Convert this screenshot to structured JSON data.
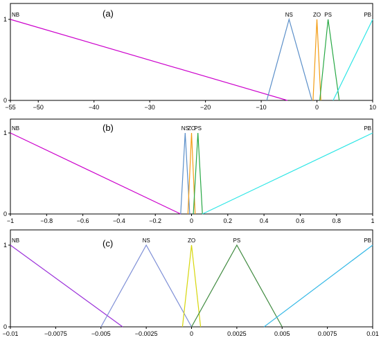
{
  "chart_data": [
    {
      "type": "line",
      "panel_label": "(a)",
      "xlim": [
        -55,
        10
      ],
      "ylim": [
        0,
        1
      ],
      "xticks": [
        {
          "v": -55,
          "label": "−55"
        },
        {
          "v": -50,
          "label": "−50"
        },
        {
          "v": -40,
          "label": "−40"
        },
        {
          "v": -30,
          "label": "−30"
        },
        {
          "v": -20,
          "label": "−20"
        },
        {
          "v": -10,
          "label": "−10"
        },
        {
          "v": 0,
          "label": "0"
        },
        {
          "v": 10,
          "label": "10"
        }
      ],
      "yticks": [
        {
          "v": 0,
          "label": "0"
        },
        {
          "v": 1,
          "label": "1"
        }
      ],
      "series": [
        {
          "name": "NB",
          "color": "#cc00cc",
          "x": [
            -55,
            -5.3
          ],
          "y": [
            1,
            0
          ]
        },
        {
          "name": "NS",
          "color": "#5b8fc9",
          "x": [
            -9,
            -5,
            -0.9
          ],
          "y": [
            0,
            1,
            0
          ]
        },
        {
          "name": "ZO",
          "color": "#f39c12",
          "x": [
            -0.7,
            0,
            0.7
          ],
          "y": [
            0,
            1,
            0
          ]
        },
        {
          "name": "PS",
          "color": "#27a844",
          "x": [
            0.5,
            2,
            4
          ],
          "y": [
            0,
            1,
            0
          ]
        },
        {
          "name": "PB",
          "color": "#2ee6e6",
          "x": [
            2.9,
            10
          ],
          "y": [
            0,
            1
          ]
        }
      ]
    },
    {
      "type": "line",
      "panel_label": "(b)",
      "xlim": [
        -1,
        1
      ],
      "ylim": [
        0,
        1
      ],
      "xticks": [
        {
          "v": -1,
          "label": "−1"
        },
        {
          "v": -0.8,
          "label": "−0.8"
        },
        {
          "v": -0.6,
          "label": "−0.6"
        },
        {
          "v": -0.4,
          "label": "−0.4"
        },
        {
          "v": -0.2,
          "label": "−0.2"
        },
        {
          "v": 0,
          "label": "0"
        },
        {
          "v": 0.2,
          "label": "0.2"
        },
        {
          "v": 0.4,
          "label": "0.4"
        },
        {
          "v": 0.6,
          "label": "0.6"
        },
        {
          "v": 0.8,
          "label": "0.8"
        },
        {
          "v": 1,
          "label": "1"
        }
      ],
      "yticks": [
        {
          "v": 0,
          "label": "0"
        },
        {
          "v": 1,
          "label": "1"
        }
      ],
      "series": [
        {
          "name": "NB",
          "color": "#cc00cc",
          "x": [
            -1,
            -0.06
          ],
          "y": [
            1,
            0
          ]
        },
        {
          "name": "NS",
          "color": "#5b8fc9",
          "x": [
            -0.06,
            -0.035,
            -0.01
          ],
          "y": [
            0,
            1,
            0
          ]
        },
        {
          "name": "ZO",
          "color": "#f39c12",
          "x": [
            -0.02,
            0,
            0.02
          ],
          "y": [
            0,
            1,
            0
          ]
        },
        {
          "name": "PS",
          "color": "#27a844",
          "x": [
            0.01,
            0.035,
            0.06
          ],
          "y": [
            0,
            1,
            0
          ]
        },
        {
          "name": "PB",
          "color": "#2ee6e6",
          "x": [
            0.06,
            1
          ],
          "y": [
            0,
            1
          ]
        }
      ]
    },
    {
      "type": "line",
      "panel_label": "(c)",
      "xlim": [
        -0.01,
        0.01
      ],
      "ylim": [
        0,
        1
      ],
      "xticks": [
        {
          "v": -0.01,
          "label": "−0.01"
        },
        {
          "v": -0.0075,
          "label": "−0.0075"
        },
        {
          "v": -0.005,
          "label": "−0.005"
        },
        {
          "v": -0.0025,
          "label": "−0.0025"
        },
        {
          "v": 0,
          "label": "0"
        },
        {
          "v": 0.0025,
          "label": "0.0025"
        },
        {
          "v": 0.005,
          "label": "0.005"
        },
        {
          "v": 0.0075,
          "label": "0.0075"
        },
        {
          "v": 0.01,
          "label": "0.01"
        }
      ],
      "yticks": [
        {
          "v": 0,
          "label": "0"
        },
        {
          "v": 1,
          "label": "1"
        }
      ],
      "series": [
        {
          "name": "NB",
          "color": "#9b30d9",
          "x": [
            -0.01,
            -0.0038
          ],
          "y": [
            1,
            0
          ]
        },
        {
          "name": "NS",
          "color": "#7e8fd6",
          "x": [
            -0.005,
            -0.0025,
            0
          ],
          "y": [
            0,
            1,
            0
          ]
        },
        {
          "name": "ZO",
          "color": "#d6d60a",
          "x": [
            -0.0005,
            0,
            0.0005
          ],
          "y": [
            0,
            1,
            0
          ]
        },
        {
          "name": "PS",
          "color": "#3f8a3f",
          "x": [
            0,
            0.0025,
            0.005
          ],
          "y": [
            0,
            1,
            0
          ]
        },
        {
          "name": "PB",
          "color": "#33b8e6",
          "x": [
            0.004,
            0.01
          ],
          "y": [
            0,
            1
          ]
        }
      ]
    }
  ]
}
